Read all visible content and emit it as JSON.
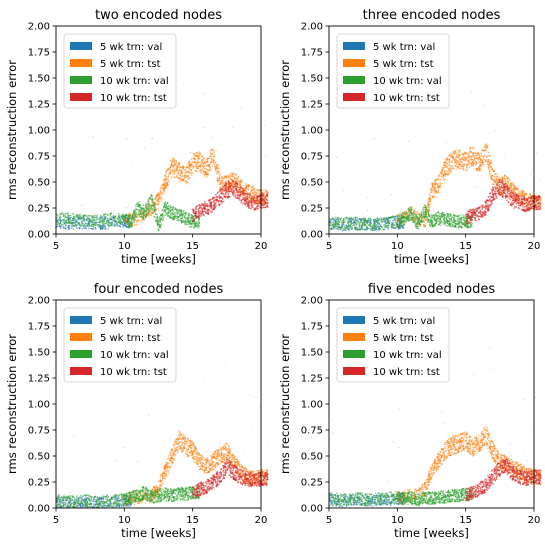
{
  "figure": {
    "background": "#ffffff",
    "series_colors": {
      "5 wk trn: val": "#1f77b4",
      "5 wk trn: tst": "#ff7f0e",
      "10 wk trn: val": "#2ca02c",
      "10 wk trn: tst": "#d62728"
    }
  },
  "chart_data": [
    {
      "type": "scatter",
      "title": "two encoded nodes",
      "xlabel": "time [weeks]",
      "ylabel": "rms reconstruction error",
      "xlim": [
        5,
        20
      ],
      "ylim": [
        0,
        2
      ],
      "xticks": [
        "5",
        "10",
        "15",
        "20"
      ],
      "yticks": [
        "0.00",
        "0.25",
        "0.50",
        "0.75",
        "1.00",
        "1.25",
        "1.50",
        "1.75",
        "2.00"
      ],
      "legend_position": "upper-left",
      "grid": false,
      "series": [
        {
          "name": "5 wk trn: val",
          "color": "#1f77b4",
          "x": [
            5,
            6,
            7,
            8,
            9,
            10
          ],
          "y": [
            0.12,
            0.1,
            0.11,
            0.1,
            0.11,
            0.12
          ]
        },
        {
          "name": "5 wk trn: tst",
          "color": "#ff7f0e",
          "x": [
            10,
            11,
            12,
            12.5,
            13,
            13.5,
            14,
            14.5,
            15,
            15.5,
            16,
            16.5,
            17,
            17.5,
            18,
            18.5,
            19,
            19.5,
            20
          ],
          "y": [
            0.13,
            0.15,
            0.25,
            0.32,
            0.5,
            0.65,
            0.6,
            0.55,
            0.68,
            0.7,
            0.62,
            0.75,
            0.5,
            0.48,
            0.52,
            0.45,
            0.4,
            0.38,
            0.35
          ]
        },
        {
          "name": "10 wk trn: val",
          "color": "#2ca02c",
          "x": [
            5,
            6,
            7,
            8,
            9,
            10,
            10.5,
            11,
            11.5,
            12,
            12.5,
            13,
            13.5,
            14,
            14.5,
            15
          ],
          "y": [
            0.15,
            0.14,
            0.13,
            0.12,
            0.14,
            0.13,
            0.12,
            0.25,
            0.2,
            0.32,
            0.08,
            0.25,
            0.2,
            0.18,
            0.15,
            0.12
          ]
        },
        {
          "name": "10 wk trn: tst",
          "color": "#d62728",
          "x": [
            15,
            15.5,
            16,
            16.5,
            17,
            17.5,
            18,
            18.5,
            19,
            19.5,
            20
          ],
          "y": [
            0.18,
            0.22,
            0.25,
            0.28,
            0.35,
            0.42,
            0.45,
            0.38,
            0.33,
            0.3,
            0.32
          ]
        }
      ]
    },
    {
      "type": "scatter",
      "title": "three encoded nodes",
      "xlabel": "time [weeks]",
      "ylabel": "rms reconstruction error",
      "xlim": [
        5,
        20
      ],
      "ylim": [
        0,
        2
      ],
      "xticks": [
        "5",
        "10",
        "15",
        "20"
      ],
      "yticks": [
        "0.00",
        "0.25",
        "0.50",
        "0.75",
        "1.00",
        "1.25",
        "1.50",
        "1.75",
        "2.00"
      ],
      "legend_position": "upper-left",
      "grid": false,
      "series": [
        {
          "name": "5 wk trn: val",
          "color": "#1f77b4",
          "x": [
            5,
            6,
            7,
            8,
            9,
            10
          ],
          "y": [
            0.1,
            0.09,
            0.1,
            0.09,
            0.1,
            0.11
          ]
        },
        {
          "name": "5 wk trn: tst",
          "color": "#ff7f0e",
          "x": [
            10,
            11,
            12,
            12.5,
            13,
            13.5,
            14,
            14.5,
            15,
            15.5,
            16,
            16.5,
            17,
            17.5,
            18,
            18.5,
            19,
            19.5,
            20
          ],
          "y": [
            0.12,
            0.2,
            0.1,
            0.4,
            0.48,
            0.62,
            0.7,
            0.72,
            0.7,
            0.75,
            0.68,
            0.8,
            0.55,
            0.45,
            0.5,
            0.4,
            0.35,
            0.33,
            0.3
          ]
        },
        {
          "name": "10 wk trn: val",
          "color": "#2ca02c",
          "x": [
            5,
            6,
            7,
            8,
            9,
            10,
            10.5,
            11,
            11.5,
            12,
            12.5,
            13,
            13.5,
            14,
            14.5,
            15
          ],
          "y": [
            0.11,
            0.1,
            0.1,
            0.09,
            0.1,
            0.12,
            0.15,
            0.2,
            0.1,
            0.22,
            0.12,
            0.15,
            0.14,
            0.13,
            0.12,
            0.12
          ]
        },
        {
          "name": "10 wk trn: tst",
          "color": "#d62728",
          "x": [
            15,
            15.5,
            16,
            16.5,
            17,
            17.5,
            18,
            18.5,
            19,
            19.5,
            20
          ],
          "y": [
            0.15,
            0.18,
            0.2,
            0.25,
            0.38,
            0.45,
            0.4,
            0.32,
            0.3,
            0.28,
            0.3
          ]
        }
      ]
    },
    {
      "type": "scatter",
      "title": "four encoded nodes",
      "xlabel": "time [weeks]",
      "ylabel": "rms reconstruction error",
      "xlim": [
        5,
        20
      ],
      "ylim": [
        0,
        2
      ],
      "xticks": [
        "5",
        "10",
        "15",
        "20"
      ],
      "yticks": [
        "0.00",
        "0.25",
        "0.50",
        "0.75",
        "1.00",
        "1.25",
        "1.50",
        "1.75",
        "2.00"
      ],
      "legend_position": "upper-left",
      "grid": false,
      "series": [
        {
          "name": "5 wk trn: val",
          "color": "#1f77b4",
          "x": [
            5,
            6,
            7,
            8,
            9,
            10
          ],
          "y": [
            0.06,
            0.05,
            0.06,
            0.05,
            0.06,
            0.07
          ]
        },
        {
          "name": "5 wk trn: tst",
          "color": "#ff7f0e",
          "x": [
            10,
            11,
            12,
            12.5,
            13,
            13.5,
            14,
            14.5,
            15,
            15.5,
            16,
            16.5,
            17,
            17.5,
            18,
            18.5,
            19,
            19.5,
            20
          ],
          "y": [
            0.08,
            0.1,
            0.12,
            0.2,
            0.35,
            0.5,
            0.65,
            0.6,
            0.55,
            0.45,
            0.4,
            0.45,
            0.5,
            0.55,
            0.45,
            0.35,
            0.3,
            0.28,
            0.3
          ]
        },
        {
          "name": "10 wk trn: val",
          "color": "#2ca02c",
          "x": [
            5,
            6,
            7,
            8,
            9,
            10,
            10.5,
            11,
            11.5,
            12,
            12.5,
            13,
            13.5,
            14,
            14.5,
            15
          ],
          "y": [
            0.07,
            0.06,
            0.07,
            0.06,
            0.07,
            0.08,
            0.1,
            0.12,
            0.15,
            0.1,
            0.12,
            0.13,
            0.12,
            0.14,
            0.13,
            0.15
          ]
        },
        {
          "name": "10 wk trn: tst",
          "color": "#d62728",
          "x": [
            15,
            15.5,
            16,
            16.5,
            17,
            17.5,
            18,
            18.5,
            19,
            19.5,
            20
          ],
          "y": [
            0.15,
            0.18,
            0.2,
            0.25,
            0.3,
            0.4,
            0.35,
            0.3,
            0.28,
            0.27,
            0.28
          ]
        }
      ]
    },
    {
      "type": "scatter",
      "title": "five encoded nodes",
      "xlabel": "time [weeks]",
      "ylabel": "rms reconstruction error",
      "xlim": [
        5,
        20
      ],
      "ylim": [
        0,
        2
      ],
      "xticks": [
        "5",
        "10",
        "15",
        "20"
      ],
      "yticks": [
        "0.00",
        "0.25",
        "0.50",
        "0.75",
        "1.00",
        "1.25",
        "1.50",
        "1.75",
        "2.00"
      ],
      "legend_position": "upper-left",
      "grid": false,
      "series": [
        {
          "name": "5 wk trn: val",
          "color": "#1f77b4",
          "x": [
            5,
            6,
            7,
            8,
            9,
            10
          ],
          "y": [
            0.08,
            0.07,
            0.08,
            0.07,
            0.08,
            0.09
          ]
        },
        {
          "name": "5 wk trn: tst",
          "color": "#ff7f0e",
          "x": [
            10,
            11,
            12,
            12.5,
            13,
            13.5,
            14,
            14.5,
            15,
            15.5,
            16,
            16.5,
            17,
            17.5,
            18,
            18.5,
            19,
            19.5,
            20
          ],
          "y": [
            0.1,
            0.12,
            0.18,
            0.35,
            0.45,
            0.55,
            0.6,
            0.62,
            0.65,
            0.58,
            0.62,
            0.7,
            0.55,
            0.45,
            0.42,
            0.38,
            0.35,
            0.32,
            0.3
          ]
        },
        {
          "name": "10 wk trn: val",
          "color": "#2ca02c",
          "x": [
            5,
            6,
            7,
            8,
            9,
            10,
            10.5,
            11,
            11.5,
            12,
            12.5,
            13,
            13.5,
            14,
            14.5,
            15
          ],
          "y": [
            0.09,
            0.08,
            0.09,
            0.08,
            0.09,
            0.1,
            0.09,
            0.1,
            0.08,
            0.1,
            0.09,
            0.1,
            0.11,
            0.12,
            0.12,
            0.13
          ]
        },
        {
          "name": "10 wk trn: tst",
          "color": "#d62728",
          "x": [
            15,
            15.5,
            16,
            16.5,
            17,
            17.5,
            18,
            18.5,
            19,
            19.5,
            20
          ],
          "y": [
            0.12,
            0.15,
            0.18,
            0.22,
            0.3,
            0.38,
            0.4,
            0.33,
            0.3,
            0.28,
            0.3
          ]
        }
      ]
    }
  ]
}
